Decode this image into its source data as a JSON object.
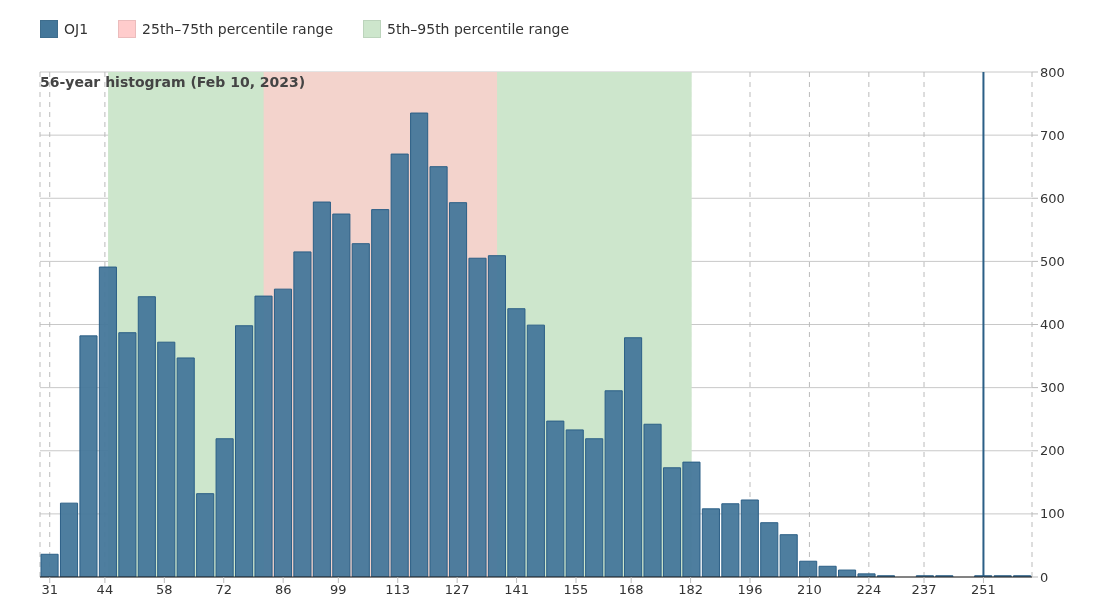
{
  "chart_data": {
    "type": "histogram",
    "title": "56-year histogram (Feb 10, 2023)",
    "bins": [
      28.71,
      33.29,
      37.88,
      42.46,
      47.04,
      51.63,
      56.21,
      60.79,
      65.37,
      69.96,
      74.54,
      79.12,
      83.71,
      88.29,
      92.87,
      97.46,
      102.04,
      106.62,
      111.2,
      115.79,
      120.37,
      124.95,
      129.54,
      134.12,
      138.7,
      143.29,
      147.87,
      152.45,
      157.03,
      161.62,
      166.2,
      170.78,
      175.37,
      179.95,
      184.53,
      189.12,
      193.7,
      198.28,
      202.86,
      207.45,
      212.03,
      216.61,
      221.2,
      225.78,
      230.36,
      234.95,
      239.53,
      244.11,
      248.7,
      253.28,
      257.86,
      262.44
    ],
    "series": [
      {
        "name": "OJ1",
        "color": "#44779a",
        "values": [
          36,
          117,
          382,
          491,
          387,
          444,
          372,
          347,
          132,
          219,
          398,
          445,
          456,
          515,
          594,
          575,
          528,
          582,
          670,
          735,
          650,
          593,
          505,
          509,
          425,
          399,
          247,
          233,
          219,
          295,
          379,
          242,
          173,
          182,
          108,
          116,
          122,
          86,
          67,
          25,
          17,
          11,
          5,
          2,
          0,
          2,
          2,
          0,
          2,
          2,
          2
        ]
      }
    ],
    "bands": [
      {
        "axis": "x",
        "from": 81.4,
        "to": 136.4,
        "label": "25th–75th percentile range",
        "color": "#ffcccc"
      },
      {
        "axis": "x",
        "from": 44.75,
        "to": 182.25,
        "label": "5th–95th percentile range",
        "color": "#cde6cc"
      }
    ],
    "ref_lines": [
      {
        "axis": "x",
        "value": 251,
        "color": "#2b5f86"
      }
    ],
    "xlim": [
      28.71,
      262.44
    ],
    "xticks": [
      31,
      44,
      58,
      72,
      86,
      99,
      113,
      127,
      141,
      155,
      168,
      182,
      196,
      210,
      224,
      237,
      251
    ],
    "ylim": [
      0,
      800
    ],
    "yticks": [
      0,
      100,
      200,
      300,
      400,
      500,
      600,
      700,
      800
    ],
    "grid": true,
    "legend": "top left"
  }
}
